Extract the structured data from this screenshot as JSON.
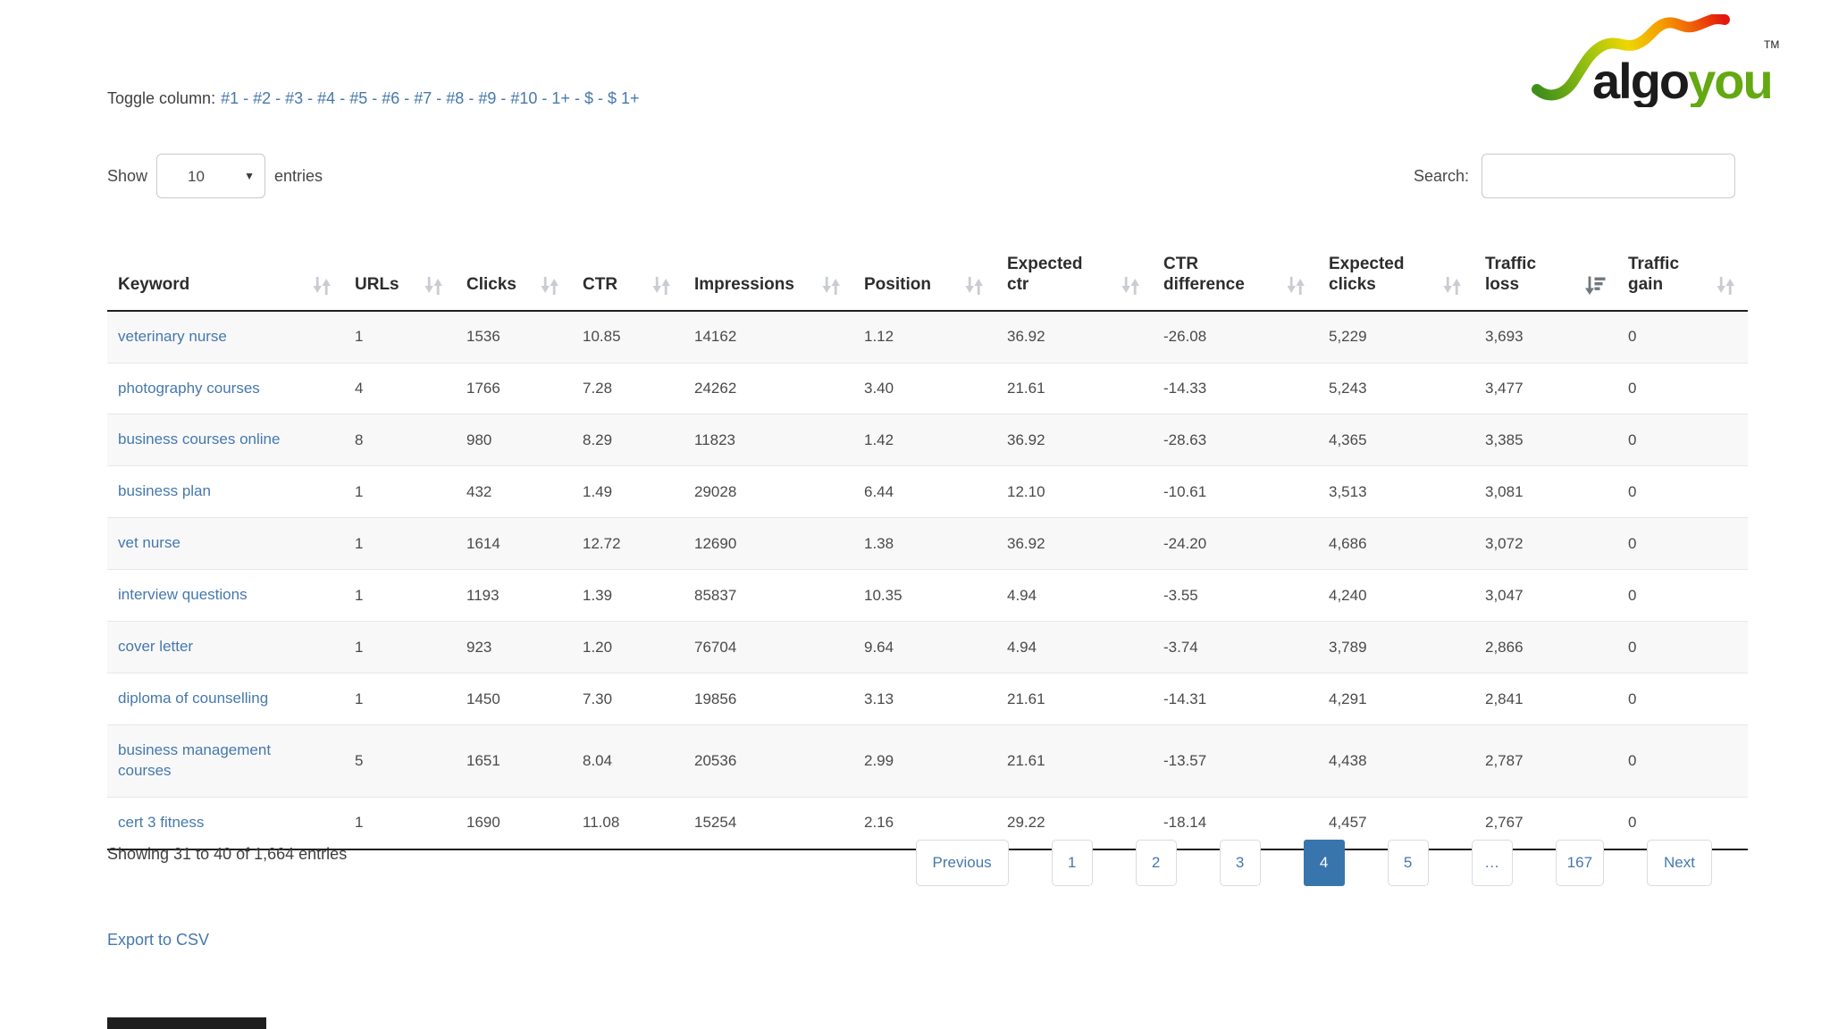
{
  "brand": {
    "name_dark": "algo",
    "name_green": "you",
    "trademark": "TM",
    "colors": {
      "green": "#64a812",
      "dark": "#1b1b1b"
    }
  },
  "toggle_columns": {
    "label": "Toggle column:",
    "links": [
      "#1",
      "#2",
      "#3",
      "#4",
      "#5",
      "#6",
      "#7",
      "#8",
      "#9",
      "#10",
      "1+",
      "$",
      "$ 1+"
    ]
  },
  "controls": {
    "show": {
      "label": "Show",
      "selected": "10",
      "suffix": "entries"
    },
    "search": {
      "label": "Search:",
      "value": ""
    }
  },
  "table": {
    "columns": [
      {
        "label": "Keyword",
        "sort": "unsorted"
      },
      {
        "label": "URLs",
        "sort": "unsorted"
      },
      {
        "label": "Clicks",
        "sort": "unsorted"
      },
      {
        "label": "CTR",
        "sort": "unsorted"
      },
      {
        "label": "Impressions",
        "sort": "unsorted"
      },
      {
        "label": "Position",
        "sort": "unsorted"
      },
      {
        "label": "Expected ctr",
        "sort": "unsorted"
      },
      {
        "label": "CTR difference",
        "sort": "unsorted"
      },
      {
        "label": "Expected clicks",
        "sort": "unsorted"
      },
      {
        "label": "Traffic loss",
        "sort": "descending"
      },
      {
        "label": "Traffic gain",
        "sort": "unsorted"
      }
    ],
    "rows": [
      [
        "veterinary nurse",
        "1",
        "1536",
        "10.85",
        "14162",
        "1.12",
        "36.92",
        "-26.08",
        "5,229",
        "3,693",
        "0"
      ],
      [
        "photography courses",
        "4",
        "1766",
        "7.28",
        "24262",
        "3.40",
        "21.61",
        "-14.33",
        "5,243",
        "3,477",
        "0"
      ],
      [
        "business courses online",
        "8",
        "980",
        "8.29",
        "11823",
        "1.42",
        "36.92",
        "-28.63",
        "4,365",
        "3,385",
        "0"
      ],
      [
        "business plan",
        "1",
        "432",
        "1.49",
        "29028",
        "6.44",
        "12.10",
        "-10.61",
        "3,513",
        "3,081",
        "0"
      ],
      [
        "vet nurse",
        "1",
        "1614",
        "12.72",
        "12690",
        "1.38",
        "36.92",
        "-24.20",
        "4,686",
        "3,072",
        "0"
      ],
      [
        "interview questions",
        "1",
        "1193",
        "1.39",
        "85837",
        "10.35",
        "4.94",
        "-3.55",
        "4,240",
        "3,047",
        "0"
      ],
      [
        "cover letter",
        "1",
        "923",
        "1.20",
        "76704",
        "9.64",
        "4.94",
        "-3.74",
        "3,789",
        "2,866",
        "0"
      ],
      [
        "diploma of counselling",
        "1",
        "1450",
        "7.30",
        "19856",
        "3.13",
        "21.61",
        "-14.31",
        "4,291",
        "2,841",
        "0"
      ],
      [
        "business management courses",
        "5",
        "1651",
        "8.04",
        "20536",
        "2.99",
        "21.61",
        "-13.57",
        "4,438",
        "2,787",
        "0"
      ],
      [
        "cert 3 fitness",
        "1",
        "1690",
        "11.08",
        "15254",
        "2.16",
        "29.22",
        "-18.14",
        "4,457",
        "2,767",
        "0"
      ]
    ]
  },
  "footer": {
    "summary": "Showing 31 to 40 of 1,664 entries",
    "pagination": {
      "previous": "Previous",
      "pages": [
        "1",
        "2",
        "3",
        "4",
        "5",
        "…",
        "167"
      ],
      "active_page": "4",
      "next": "Next"
    },
    "export_link": "Export to CSV"
  },
  "colors": {
    "link": "#4678ad",
    "active_page_bg": "#3875ac",
    "stripe": "#f8f8f9",
    "dark_border": "#1f1f1f"
  }
}
